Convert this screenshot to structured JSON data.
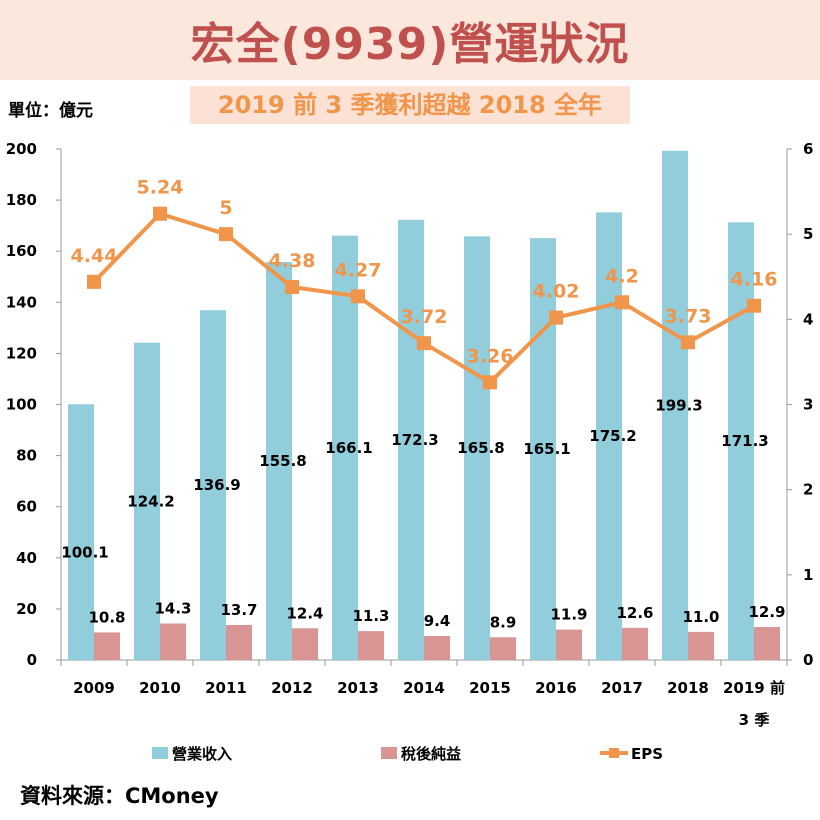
{
  "header": {
    "title": "宏全(9939)營運狀況",
    "subtitle": "2019 前 3 季獲利超越 2018 全年",
    "unit": "單位：億元",
    "source": "資料來源：CMoney"
  },
  "colors": {
    "revenue": "#92cddc",
    "net_income": "#d99594",
    "eps": "#f0954a",
    "title": "#c0504d",
    "title_band": "#fbe7dc",
    "subtitle_bg": "#fbe2d5"
  },
  "chart_data": {
    "type": "bar",
    "categories": [
      "2009",
      "2010",
      "2011",
      "2012",
      "2013",
      "2014",
      "2015",
      "2016",
      "2017",
      "2018",
      "2019 前\n3 季"
    ],
    "series": [
      {
        "name": "營業收入",
        "type": "bar",
        "axis": "left",
        "values": [
          100.1,
          124.2,
          136.9,
          155.8,
          166.1,
          172.3,
          165.8,
          165.1,
          175.2,
          199.3,
          171.3
        ],
        "labels": [
          "100.1",
          "124.2",
          "136.9",
          "155.8",
          "166.1",
          "172.3",
          "165.8",
          "165.1",
          "175.2",
          "199.3",
          "171.3"
        ]
      },
      {
        "name": "稅後純益",
        "type": "bar",
        "axis": "left",
        "values": [
          10.8,
          14.3,
          13.7,
          12.4,
          11.3,
          9.4,
          8.9,
          11.9,
          12.6,
          11.0,
          12.9
        ],
        "labels": [
          "10.8",
          "14.3",
          "13.7",
          "12.4",
          "11.3",
          "9.4",
          "8.9",
          "11.9",
          "12.6",
          "11.0",
          "12.9"
        ]
      },
      {
        "name": "EPS",
        "type": "line",
        "axis": "right",
        "values": [
          4.44,
          5.24,
          5,
          4.38,
          4.27,
          3.72,
          3.26,
          4.02,
          4.2,
          3.73,
          4.16
        ],
        "labels": [
          "4.44",
          "5.24",
          "5",
          "4.38",
          "4.27",
          "3.72",
          "3.26",
          "4.02",
          "4.2",
          "3.73",
          "4.16"
        ]
      }
    ],
    "y_left": {
      "min": 0,
      "max": 200,
      "ticks": [
        "0",
        "20",
        "40",
        "60",
        "80",
        "100",
        "120",
        "140",
        "160",
        "180",
        "200"
      ]
    },
    "y_right": {
      "min": 0,
      "max": 6,
      "ticks": [
        "0",
        "1",
        "2",
        "3",
        "4",
        "5",
        "6"
      ]
    },
    "grid": false,
    "legend": "bottom"
  }
}
